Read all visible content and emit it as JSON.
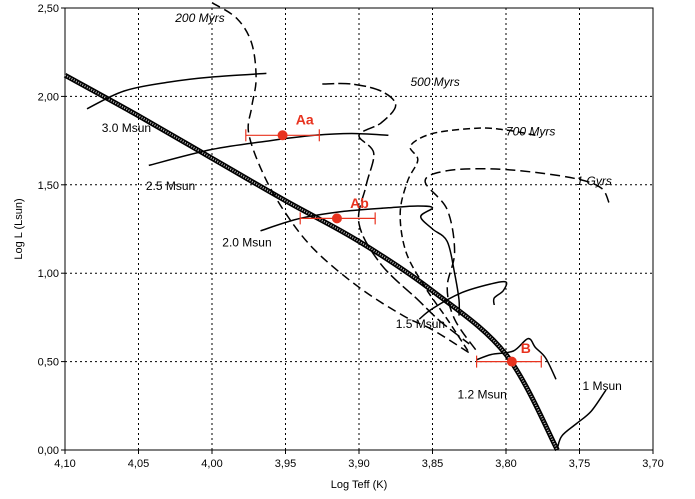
{
  "chart_data": {
    "type": "line",
    "title": "",
    "xlabel": "Log Teff (K)",
    "ylabel": "Log L (Lsun)",
    "xlim": [
      4.1,
      3.7
    ],
    "ylim": [
      0.0,
      2.5
    ],
    "x_reversed": true,
    "grid": true,
    "x_ticks": [
      "4,10",
      "4,05",
      "4,00",
      "3,95",
      "3,90",
      "3,85",
      "3,80",
      "3,75",
      "3,70"
    ],
    "y_ticks": [
      "0,00",
      "0,50",
      "1,00",
      "1,50",
      "2,00",
      "2,50"
    ],
    "x_tick_values": [
      4.1,
      4.05,
      4.0,
      3.95,
      3.9,
      3.85,
      3.8,
      3.75,
      3.7
    ],
    "y_tick_values": [
      0.0,
      0.5,
      1.0,
      1.5,
      2.0,
      2.5
    ],
    "colors": {
      "tracks": "#000000",
      "stars": "#e8321e",
      "grid": "#000000"
    },
    "zams": [
      [
        4.1,
        2.12
      ],
      [
        4.05,
        1.89
      ],
      [
        4.0,
        1.65
      ],
      [
        3.95,
        1.41
      ],
      [
        3.9,
        1.18
      ],
      [
        3.85,
        0.9
      ],
      [
        3.8,
        0.54
      ],
      [
        3.765,
        0.0
      ]
    ],
    "tracks": [
      {
        "label": "3.0 Msun",
        "label_at": [
          4.075,
          1.8
        ],
        "points": [
          [
            4.085,
            1.93
          ],
          [
            4.06,
            2.03
          ],
          [
            4.03,
            2.08
          ],
          [
            4.0,
            2.11
          ],
          [
            3.963,
            2.13
          ]
        ]
      },
      {
        "label": "2.5 Msun",
        "label_at": [
          4.045,
          1.47
        ],
        "points": [
          [
            4.043,
            1.61
          ],
          [
            4.0,
            1.7
          ],
          [
            3.96,
            1.75
          ],
          [
            3.93,
            1.78
          ],
          [
            3.905,
            1.79
          ],
          [
            3.88,
            1.78
          ]
        ]
      },
      {
        "label": "2.0 Msun",
        "label_at": [
          3.993,
          1.15
        ],
        "points": [
          [
            3.967,
            1.24
          ],
          [
            3.94,
            1.31
          ],
          [
            3.91,
            1.35
          ],
          [
            3.88,
            1.37
          ],
          [
            3.86,
            1.38
          ],
          [
            3.85,
            1.37
          ],
          [
            3.858,
            1.32
          ],
          [
            3.85,
            1.25
          ],
          [
            3.84,
            1.18
          ],
          [
            3.835,
            1.0
          ],
          [
            3.832,
            0.85
          ],
          [
            3.832,
            0.76
          ]
        ]
      },
      {
        "label": "1.5 Msun",
        "label_at": [
          3.875,
          0.69
        ],
        "points": [
          [
            3.859,
            0.74
          ],
          [
            3.85,
            0.8
          ],
          [
            3.83,
            0.89
          ],
          [
            3.81,
            0.94
          ],
          [
            3.8,
            0.95
          ],
          [
            3.802,
            0.9
          ],
          [
            3.808,
            0.86
          ],
          [
            3.808,
            0.82
          ]
        ]
      },
      {
        "label": "1.2 Msun",
        "label_at": [
          3.833,
          0.29
        ],
        "points": [
          [
            3.82,
            0.51
          ],
          [
            3.81,
            0.54
          ],
          [
            3.795,
            0.56
          ],
          [
            3.785,
            0.63
          ],
          [
            3.78,
            0.58
          ],
          [
            3.773,
            0.52
          ],
          [
            3.766,
            0.4
          ]
        ]
      },
      {
        "label": "1 Msun",
        "label_at": [
          3.748,
          0.34
        ],
        "points": [
          [
            3.765,
            0.01
          ],
          [
            3.762,
            0.08
          ],
          [
            3.752,
            0.15
          ],
          [
            3.742,
            0.22
          ],
          [
            3.732,
            0.34
          ]
        ]
      }
    ],
    "isochrones": [
      {
        "label": "200 Myrs",
        "label_at": [
          4.025,
          2.42
        ],
        "points": [
          [
            4.0,
            2.53
          ],
          [
            3.983,
            2.44
          ],
          [
            3.973,
            2.3
          ],
          [
            3.97,
            2.1
          ],
          [
            3.973,
            1.94
          ],
          [
            3.975,
            1.79
          ],
          [
            3.965,
            1.56
          ],
          [
            3.95,
            1.34
          ],
          [
            3.93,
            1.13
          ],
          [
            3.9,
            0.92
          ],
          [
            3.87,
            0.76
          ],
          [
            3.85,
            0.68
          ],
          [
            3.825,
            0.55
          ]
        ]
      },
      {
        "label": "500 Myrs",
        "label_at": [
          3.865,
          2.06
        ],
        "points": [
          [
            3.925,
            2.07
          ],
          [
            3.905,
            2.07
          ],
          [
            3.885,
            2.03
          ],
          [
            3.875,
            1.95
          ],
          [
            3.885,
            1.85
          ],
          [
            3.9,
            1.78
          ],
          [
            3.89,
            1.68
          ],
          [
            3.895,
            1.5
          ],
          [
            3.9,
            1.28
          ],
          [
            3.885,
            1.05
          ],
          [
            3.86,
            0.85
          ],
          [
            3.845,
            0.73
          ],
          [
            3.825,
            0.6
          ]
        ]
      },
      {
        "label": "700 Myrs",
        "label_at": [
          3.8,
          1.78
        ],
        "points": [
          [
            3.78,
            1.78
          ],
          [
            3.8,
            1.81
          ],
          [
            3.82,
            1.82
          ],
          [
            3.85,
            1.79
          ],
          [
            3.865,
            1.72
          ],
          [
            3.86,
            1.64
          ],
          [
            3.867,
            1.52
          ],
          [
            3.872,
            1.34
          ],
          [
            3.868,
            1.12
          ],
          [
            3.855,
            0.92
          ],
          [
            3.84,
            0.74
          ],
          [
            3.825,
            0.55
          ]
        ]
      },
      {
        "label": "1 Gyrs",
        "label_at": [
          3.752,
          1.5
        ],
        "points": [
          [
            3.73,
            1.4
          ],
          [
            3.735,
            1.48
          ],
          [
            3.75,
            1.53
          ],
          [
            3.78,
            1.57
          ],
          [
            3.81,
            1.59
          ],
          [
            3.84,
            1.58
          ],
          [
            3.855,
            1.52
          ],
          [
            3.84,
            1.36
          ],
          [
            3.835,
            1.12
          ],
          [
            3.84,
            0.92
          ],
          [
            3.835,
            0.74
          ],
          [
            3.82,
            0.56
          ]
        ]
      }
    ],
    "stars": [
      {
        "label": "Aa",
        "x": 3.952,
        "y": 1.78,
        "xerr_low": 3.977,
        "xerr_high": 3.927,
        "label_at": [
          3.943,
          1.84
        ]
      },
      {
        "label": "Ab",
        "x": 3.915,
        "y": 1.31,
        "xerr_low": 3.94,
        "xerr_high": 3.889,
        "label_at": [
          3.906,
          1.37
        ]
      },
      {
        "label": "B",
        "x": 3.796,
        "y": 0.5,
        "xerr_low": 3.82,
        "xerr_high": 3.776,
        "label_at": [
          3.79,
          0.55
        ]
      }
    ]
  }
}
